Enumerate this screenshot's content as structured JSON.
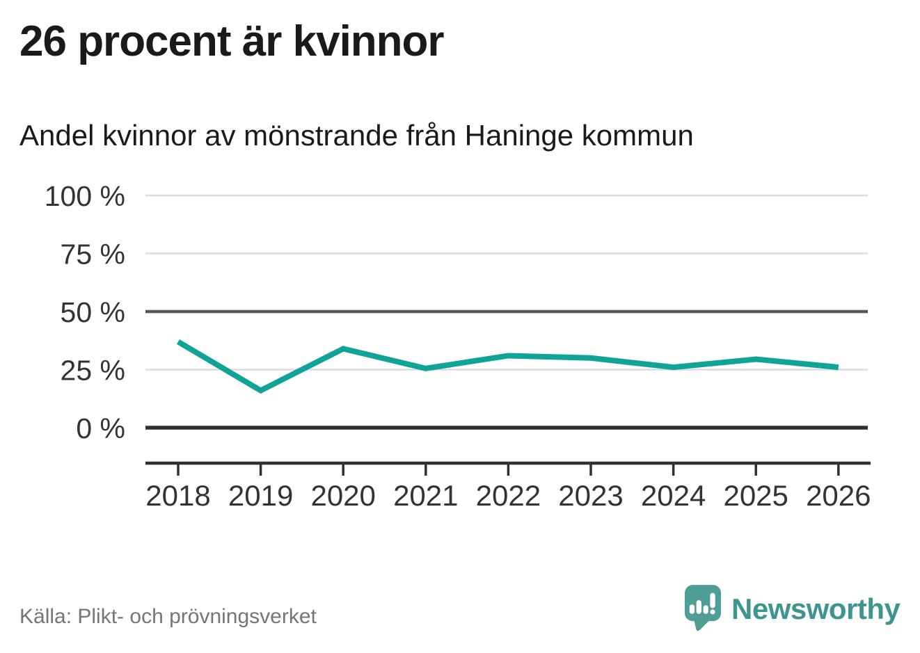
{
  "page": {
    "title": "26 procent är kvinnor",
    "subtitle": "Andel kvinnor av mönstrande från Haninge kommun"
  },
  "chart_data": {
    "type": "line",
    "title": "26 procent är kvinnor",
    "subtitle": "Andel kvinnor av mönstrande från Haninge kommun",
    "categories": [
      "2018",
      "2019",
      "2020",
      "2021",
      "2022",
      "2023",
      "2024",
      "2025",
      "2026"
    ],
    "series": [
      {
        "name": "Andel kvinnor av mönstrande",
        "values": [
          37,
          16,
          34,
          25.5,
          31,
          30,
          26,
          29.5,
          26
        ]
      }
    ],
    "unit": "%",
    "ylim": [
      0,
      100
    ],
    "yticks": [
      {
        "value": 100,
        "label": "100 %"
      },
      {
        "value": 75,
        "label": "75 %"
      },
      {
        "value": 50,
        "label": "50 %"
      },
      {
        "value": 25,
        "label": "25 %"
      },
      {
        "value": 0,
        "label": "0 %"
      }
    ],
    "grid": "horizontal",
    "legend": "none",
    "line_color": "#10A397"
  },
  "footer": {
    "source": "Källa: Plikt- och prövningsverket",
    "brand_name": "Newsworthy"
  },
  "colors": {
    "background": "#FFFFFF",
    "accent_teal": "#10A397",
    "brand_teal": "#4F9D97",
    "brand_text": "#3E948E",
    "grid_light": "#DCDCDC",
    "grid_mid": "#58585B",
    "grid_dark": "#303032",
    "text_dark": "#1A1A1A",
    "text_axis": "#333333",
    "text_muted": "#757575"
  }
}
